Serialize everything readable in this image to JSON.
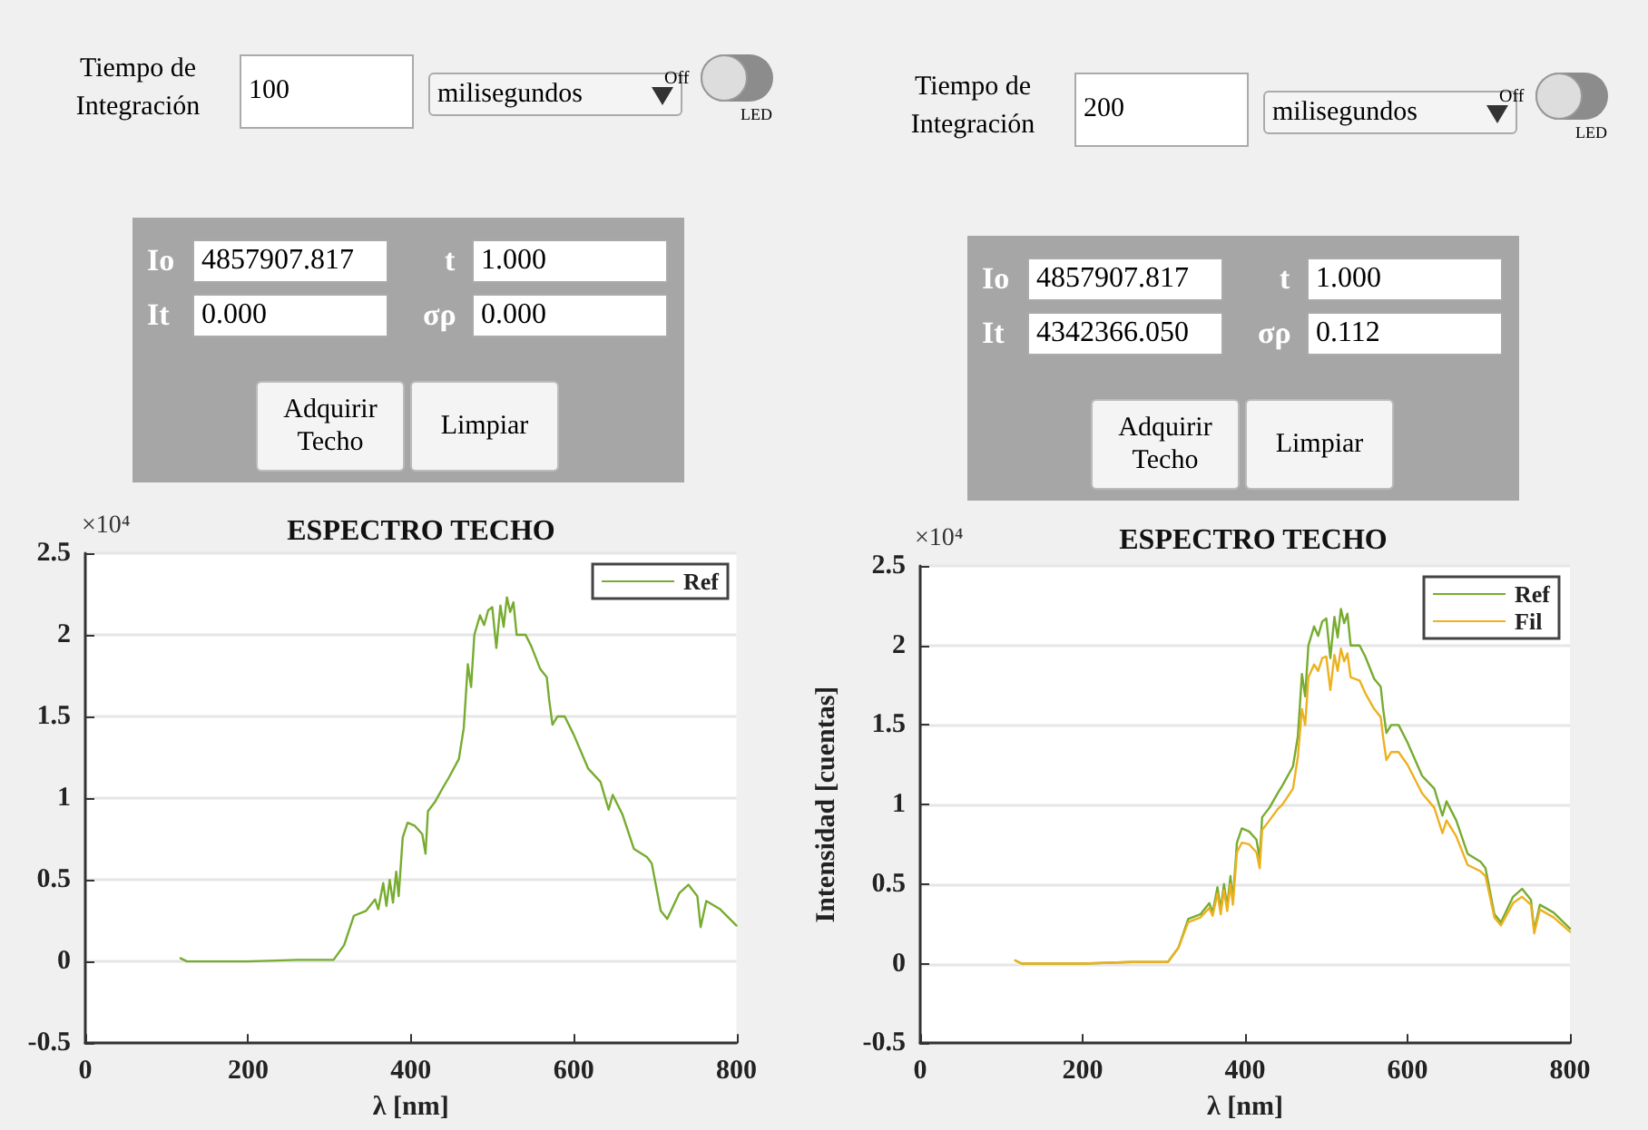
{
  "chart_data": [
    {
      "type": "other",
      "annotations": [
        "Tiempo de Integración",
        "100",
        "milisegundos",
        "Off",
        "LED",
        "Io",
        "4857907.817",
        "t",
        "1.000",
        "It",
        "0.000",
        "σρ",
        "0.000",
        "Adquirir Techo",
        "Limpiar"
      ]
    },
    {
      "type": "other",
      "annotations": [
        "Tiempo de Integración",
        "200",
        "milisegundos",
        "Off",
        "LED",
        "Io",
        "4857907.817",
        "t",
        "1.000",
        "It",
        "4342366.050",
        "σρ",
        "0.112",
        "Adquirir Techo",
        "Limpiar"
      ]
    },
    {
      "type": "line",
      "title": "ESPECTRO TECHO",
      "xlabel": "λ [nm]",
      "annotations": [
        "×10⁴"
      ],
      "xlim": [
        0,
        800
      ],
      "xticks": [
        0,
        200,
        400,
        600,
        800
      ],
      "ylim": [
        -0.5,
        2.5
      ],
      "yticks": [
        -0.5,
        0,
        0.5,
        1,
        1.5,
        2,
        2.5
      ],
      "grid": "y",
      "legend": "top right",
      "marker": "none",
      "line_style": "solid",
      "x": [
        117,
        125,
        200,
        260,
        305,
        318,
        330,
        345,
        356,
        360,
        366,
        370,
        374,
        378,
        382,
        385,
        390,
        396,
        405,
        414,
        418,
        421,
        430,
        440,
        446,
        459,
        465,
        470,
        474,
        478,
        485,
        490,
        495,
        500,
        505,
        510,
        514,
        518,
        522,
        526,
        530,
        541,
        548,
        559,
        567,
        570,
        574,
        580,
        589,
        600,
        618,
        633,
        643,
        648,
        660,
        674,
        690,
        696,
        707,
        715,
        730,
        741,
        752,
        756,
        763,
        780,
        800
      ],
      "series": [
        {
          "name": "Ref",
          "color": "#77ac30",
          "values": [
            0.02,
            0,
            0,
            0.01,
            0.01,
            0.1,
            0.28,
            0.31,
            0.38,
            0.32,
            0.48,
            0.34,
            0.5,
            0.36,
            0.55,
            0.4,
            0.76,
            0.85,
            0.83,
            0.78,
            0.66,
            0.92,
            0.98,
            1.07,
            1.12,
            1.24,
            1.43,
            1.82,
            1.68,
            2.0,
            2.12,
            2.06,
            2.15,
            2.17,
            1.92,
            2.18,
            2.05,
            2.23,
            2.14,
            2.2,
            2.0,
            2.0,
            1.93,
            1.79,
            1.74,
            1.6,
            1.45,
            1.5,
            1.5,
            1.39,
            1.18,
            1.1,
            0.93,
            1.02,
            0.9,
            0.69,
            0.64,
            0.6,
            0.31,
            0.26,
            0.42,
            0.47,
            0.4,
            0.21,
            0.37,
            0.32,
            0.22
          ]
        }
      ]
    },
    {
      "type": "line",
      "title": "ESPECTRO TECHO",
      "xlabel": "λ [nm]",
      "ylabel": "Intensidad [cuentas]",
      "annotations": [
        "×10⁴"
      ],
      "xlim": [
        0,
        800
      ],
      "xticks": [
        0,
        200,
        400,
        600,
        800
      ],
      "ylim": [
        -0.5,
        2.5
      ],
      "yticks": [
        -0.5,
        0,
        0.5,
        1,
        1.5,
        2,
        2.5
      ],
      "grid": "y",
      "legend": "top right",
      "marker": "none",
      "line_style": "solid",
      "x": [
        117,
        125,
        200,
        260,
        305,
        318,
        330,
        345,
        356,
        360,
        366,
        370,
        374,
        378,
        382,
        385,
        390,
        396,
        405,
        414,
        418,
        421,
        430,
        440,
        446,
        459,
        465,
        470,
        474,
        478,
        485,
        490,
        495,
        500,
        505,
        510,
        514,
        518,
        522,
        526,
        530,
        541,
        548,
        559,
        567,
        570,
        574,
        580,
        589,
        600,
        618,
        633,
        643,
        648,
        660,
        674,
        690,
        696,
        707,
        715,
        730,
        741,
        752,
        756,
        763,
        780,
        800
      ],
      "series": [
        {
          "name": "Ref",
          "color": "#77ac30",
          "values": [
            0.02,
            0,
            0,
            0.01,
            0.01,
            0.1,
            0.28,
            0.31,
            0.38,
            0.32,
            0.48,
            0.34,
            0.5,
            0.36,
            0.55,
            0.4,
            0.76,
            0.85,
            0.83,
            0.78,
            0.66,
            0.92,
            0.98,
            1.07,
            1.12,
            1.24,
            1.43,
            1.82,
            1.68,
            2.0,
            2.12,
            2.06,
            2.15,
            2.17,
            1.92,
            2.18,
            2.05,
            2.23,
            2.14,
            2.2,
            2.0,
            2.0,
            1.93,
            1.79,
            1.74,
            1.6,
            1.45,
            1.5,
            1.5,
            1.39,
            1.18,
            1.1,
            0.93,
            1.02,
            0.9,
            0.69,
            0.64,
            0.6,
            0.31,
            0.26,
            0.42,
            0.47,
            0.4,
            0.21,
            0.37,
            0.32,
            0.22
          ]
        },
        {
          "name": "Fil",
          "color": "#edb120",
          "values": [
            0.02,
            0,
            0,
            0.01,
            0.01,
            0.1,
            0.26,
            0.29,
            0.35,
            0.3,
            0.44,
            0.31,
            0.46,
            0.33,
            0.5,
            0.37,
            0.7,
            0.76,
            0.75,
            0.7,
            0.6,
            0.84,
            0.9,
            0.97,
            1.0,
            1.1,
            1.3,
            1.6,
            1.5,
            1.8,
            1.88,
            1.84,
            1.92,
            1.93,
            1.72,
            1.94,
            1.84,
            1.98,
            1.9,
            1.95,
            1.8,
            1.78,
            1.7,
            1.6,
            1.55,
            1.42,
            1.28,
            1.33,
            1.33,
            1.25,
            1.07,
            0.98,
            0.82,
            0.9,
            0.8,
            0.62,
            0.58,
            0.55,
            0.29,
            0.24,
            0.38,
            0.42,
            0.37,
            0.19,
            0.34,
            0.29,
            0.2
          ]
        }
      ]
    }
  ]
}
